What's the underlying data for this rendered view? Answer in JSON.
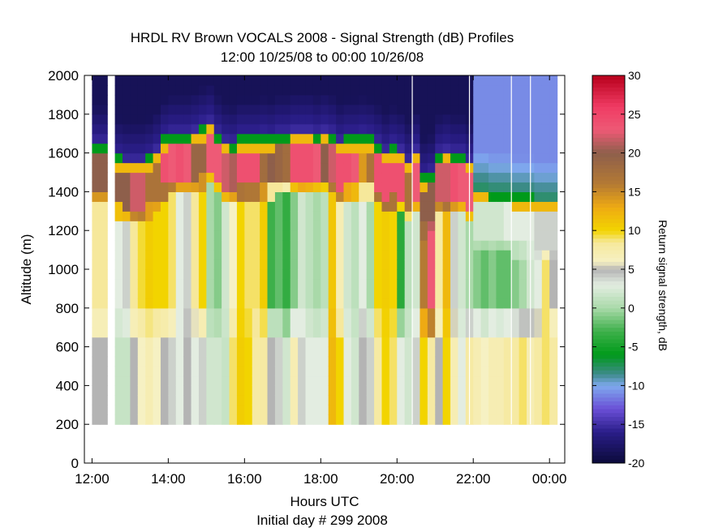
{
  "chart_data": {
    "type": "heatmap",
    "title_line1": "HRDL RV Brown VOCALS 2008 - Signal Strength (dB) Profiles",
    "title_line2": "12:00 10/25/08 to 00:00 10/26/08",
    "xlabel": "Hours UTC",
    "xlabel2": "Initial day # 299  2008",
    "ylabel": "Altitude (m)",
    "colorbar_label": "Return signal strength, dB",
    "x_unit": "hours UTC (12 = 12:00 on 10/25/08, 24 = 00:00 on 10/26/08)",
    "xlim": [
      11.8,
      24.4
    ],
    "ylim": [
      0,
      2000
    ],
    "clim": [
      -20,
      30
    ],
    "x_ticks": [
      12,
      14,
      16,
      18,
      20,
      22,
      24
    ],
    "x_tick_labels": [
      "12:00",
      "14:00",
      "16:00",
      "18:00",
      "20:00",
      "22:00",
      "00:00"
    ],
    "y_ticks": [
      0,
      200,
      400,
      600,
      800,
      1000,
      1200,
      1400,
      1600,
      1800,
      2000
    ],
    "y_tick_labels": [
      "0",
      "200",
      "400",
      "600",
      "800",
      "1000",
      "1200",
      "1400",
      "1600",
      "1800",
      "2000"
    ],
    "cbar_ticks": [
      -20,
      -15,
      -10,
      -5,
      0,
      5,
      10,
      15,
      20,
      25,
      30
    ],
    "cbar_tick_labels": [
      "-20",
      "-15",
      "-10",
      "-5",
      "0",
      "5",
      "10",
      "15",
      "20",
      "25",
      "30"
    ],
    "colormap": [
      {
        "v": -20,
        "c": "#0b0b3a"
      },
      {
        "v": -16,
        "c": "#2a1d88"
      },
      {
        "v": -13,
        "c": "#6a4fd6"
      },
      {
        "v": -10,
        "c": "#7fa9ee"
      },
      {
        "v": -8.5,
        "c": "#3d8a8a"
      },
      {
        "v": -6,
        "c": "#009a1a"
      },
      {
        "v": -3,
        "c": "#3db04a"
      },
      {
        "v": 0,
        "c": "#a9d9a9"
      },
      {
        "v": 3,
        "c": "#e3ede1"
      },
      {
        "v": 5,
        "c": "#b4b4b4"
      },
      {
        "v": 6,
        "c": "#f6f1c3"
      },
      {
        "v": 8.5,
        "c": "#f6e89b"
      },
      {
        "v": 10,
        "c": "#f2d400"
      },
      {
        "v": 13,
        "c": "#eeaa13"
      },
      {
        "v": 16,
        "c": "#b47a33"
      },
      {
        "v": 20,
        "c": "#8e5f4b"
      },
      {
        "v": 23,
        "c": "#ee5a76"
      },
      {
        "v": 26,
        "c": "#ef3b63"
      },
      {
        "v": 30,
        "c": "#b8001c"
      }
    ],
    "altitude_bins": [
      200,
      250,
      300,
      350,
      400,
      450,
      500,
      550,
      600,
      650,
      700,
      750,
      800,
      850,
      900,
      950,
      1000,
      1050,
      1100,
      1150,
      1200,
      1250,
      1300,
      1350,
      1400,
      1450,
      1500,
      1550,
      1600,
      1650,
      1700,
      1750,
      1800,
      1850,
      1900,
      1950,
      2000
    ],
    "profiles": [
      {
        "t": 12.0,
        "top": 1650,
        "lower": 5,
        "mid": 8.5,
        "base": 20
      },
      {
        "t": 12.2,
        "top": 1650,
        "lower": 5,
        "mid": 8.5,
        "base": 20
      },
      {
        "t": 12.6,
        "top": 1580,
        "lower": 1.5,
        "mid": 3,
        "base": 20
      },
      {
        "t": 12.8,
        "top": 1560,
        "lower": 1.5,
        "mid": 4,
        "base": 20
      },
      {
        "t": 13.0,
        "top": 1560,
        "lower": 5,
        "mid": 8.5,
        "base": 22
      },
      {
        "t": 13.2,
        "top": 1560,
        "lower": 6,
        "mid": 9.5,
        "base": 22
      },
      {
        "t": 13.4,
        "top": 1580,
        "lower": 7,
        "mid": 10.5,
        "base": 17
      },
      {
        "t": 13.6,
        "top": 1620,
        "lower": 6,
        "mid": 10,
        "base": 17
      },
      {
        "t": 13.8,
        "top": 1680,
        "lower": 5,
        "mid": 10,
        "base": 24
      },
      {
        "t": 14.0,
        "top": 1700,
        "lower": 4,
        "mid": 9,
        "base": 23
      },
      {
        "t": 14.2,
        "top": 1700,
        "lower": 3,
        "mid": 3,
        "base": 24
      },
      {
        "t": 14.4,
        "top": 1700,
        "lower": 5,
        "mid": 4,
        "base": 23
      },
      {
        "t": 14.6,
        "top": 1720,
        "lower": 3,
        "mid": 8.5,
        "base": 19
      },
      {
        "t": 14.8,
        "top": 1740,
        "lower": 4,
        "mid": 10,
        "base": 19
      },
      {
        "t": 15.0,
        "top": 1760,
        "lower": 2,
        "mid": 0,
        "base": 23
      },
      {
        "t": 15.2,
        "top": 1700,
        "lower": 2,
        "mid": -1,
        "base": 23
      },
      {
        "t": 15.4,
        "top": 1660,
        "lower": 1.5,
        "mid": 2,
        "base": 22
      },
      {
        "t": 15.6,
        "top": 1650,
        "lower": 9,
        "mid": 6,
        "base": 21
      },
      {
        "t": 15.8,
        "top": 1680,
        "lower": 10.5,
        "mid": 10,
        "base": 24
      },
      {
        "t": 16.0,
        "top": 1680,
        "lower": 10,
        "mid": 9,
        "base": 24
      },
      {
        "t": 16.2,
        "top": 1680,
        "lower": 8,
        "mid": 9,
        "base": 24
      },
      {
        "t": 16.4,
        "top": 1690,
        "lower": 8,
        "mid": 10.5,
        "base": 18
      },
      {
        "t": 16.6,
        "top": 1680,
        "lower": 5,
        "mid": -3,
        "base": 20
      },
      {
        "t": 16.8,
        "top": 1700,
        "lower": 4,
        "mid": -2,
        "base": 19
      },
      {
        "t": 17.0,
        "top": 1700,
        "lower": 2,
        "mid": -3.5,
        "base": 18
      },
      {
        "t": 17.2,
        "top": 1720,
        "lower": 7,
        "mid": -1,
        "base": 24
      },
      {
        "t": 17.4,
        "top": 1720,
        "lower": 4,
        "mid": 2,
        "base": 24
      },
      {
        "t": 17.6,
        "top": 1720,
        "lower": 3,
        "mid": 1,
        "base": 24
      },
      {
        "t": 17.8,
        "top": 1700,
        "lower": 3,
        "mid": 0,
        "base": 23
      },
      {
        "t": 18.0,
        "top": 1720,
        "lower": 3,
        "mid": 1,
        "base": 20
      },
      {
        "t": 18.2,
        "top": 1700,
        "lower": 12,
        "mid": 11,
        "base": 22
      },
      {
        "t": 18.4,
        "top": 1660,
        "lower": 10,
        "mid": 7,
        "base": 24
      },
      {
        "t": 18.6,
        "top": 1680,
        "lower": 3,
        "mid": 2,
        "base": 24
      },
      {
        "t": 18.8,
        "top": 1680,
        "lower": 2,
        "mid": 1,
        "base": 23
      },
      {
        "t": 19.0,
        "top": 1690,
        "lower": 5,
        "mid": 3,
        "base": 14
      },
      {
        "t": 19.2,
        "top": 1680,
        "lower": 4,
        "mid": 0,
        "base": 17
      },
      {
        "t": 19.4,
        "top": 1650,
        "lower": 8,
        "mid": 10,
        "base": 24
      },
      {
        "t": 19.6,
        "top": 1610,
        "lower": 10,
        "mid": 10.5,
        "base": 24
      },
      {
        "t": 19.8,
        "top": 1640,
        "lower": 9,
        "mid": 10,
        "base": 24
      },
      {
        "t": 20.0,
        "top": 1620,
        "lower": 3,
        "mid": -4,
        "base": 24
      },
      {
        "t": 20.2,
        "top": 1560,
        "lower": 2,
        "mid": 1,
        "base": 17
      },
      {
        "t": 20.4,
        "top": 1620,
        "lower": 4,
        "mid": 2,
        "base": 23
      },
      {
        "t": 20.6,
        "top": 1480,
        "lower": 10,
        "mid": 16,
        "base": 20
      },
      {
        "t": 20.8,
        "top": 1500,
        "lower": 8,
        "mid": 23,
        "base": 20
      },
      {
        "t": 21.0,
        "top": 1600,
        "lower": 5,
        "mid": 8,
        "base": 22
      },
      {
        "t": 21.2,
        "top": 1620,
        "lower": 10,
        "mid": 12,
        "base": 22
      },
      {
        "t": 21.4,
        "top": 1600,
        "lower": 7,
        "mid": 4,
        "base": 24
      },
      {
        "t": 21.6,
        "top": 1600,
        "lower": 3,
        "mid": 2,
        "base": 23
      },
      {
        "t": 21.8,
        "top": 1560,
        "lower": 8,
        "mid": 0,
        "base": 23
      },
      {
        "t": 22.0,
        "top": 1420,
        "lower": 7,
        "mid": -1,
        "base": 2
      },
      {
        "t": 22.2,
        "top": 1420,
        "lower": 6,
        "mid": -2,
        "base": 2
      },
      {
        "t": 22.4,
        "top": 1400,
        "lower": 7,
        "mid": -1,
        "base": 2
      },
      {
        "t": 22.6,
        "top": 1400,
        "lower": 7,
        "mid": -2,
        "base": 2
      },
      {
        "t": 22.8,
        "top": 1400,
        "lower": 8,
        "mid": -2,
        "base": 3
      },
      {
        "t": 23.0,
        "top": 1380,
        "lower": 8,
        "mid": -1,
        "base": 3
      },
      {
        "t": 23.2,
        "top": 1380,
        "lower": 9,
        "mid": 0,
        "base": 3
      },
      {
        "t": 23.4,
        "top": 1380,
        "lower": 7,
        "mid": 2,
        "base": 3
      },
      {
        "t": 23.6,
        "top": 1360,
        "lower": 8,
        "mid": 3,
        "base": 4
      },
      {
        "t": 23.8,
        "top": 1360,
        "lower": 9,
        "mid": 9,
        "base": 4
      },
      {
        "t": 24.0,
        "top": 1360,
        "lower": 8,
        "mid": 5,
        "base": 4
      }
    ]
  }
}
